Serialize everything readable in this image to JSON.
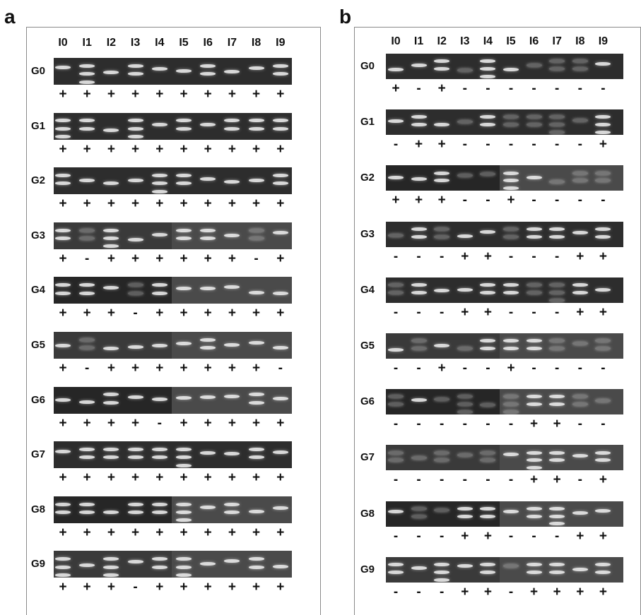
{
  "panels": [
    {
      "letter": "a",
      "lanes": [
        "I0",
        "I1",
        "I2",
        "I3",
        "I4",
        "I5",
        "I6",
        "I7",
        "I8",
        "I9"
      ],
      "rows": [
        {
          "label": "G0",
          "marks": [
            "+",
            "+",
            "+",
            "+",
            "+",
            "+",
            "+",
            "+",
            "+",
            "+"
          ]
        },
        {
          "label": "G1",
          "marks": [
            "+",
            "+",
            "+",
            "+",
            "+",
            "+",
            "+",
            "+",
            "+",
            "+"
          ]
        },
        {
          "label": "G2",
          "marks": [
            "+",
            "+",
            "+",
            "+",
            "+",
            "+",
            "+",
            "+",
            "+",
            "+"
          ]
        },
        {
          "label": "G3",
          "marks": [
            "+",
            "-",
            "+",
            "+",
            "+",
            "+",
            "+",
            "+",
            "-",
            "+"
          ]
        },
        {
          "label": "G4",
          "marks": [
            "+",
            "+",
            "+",
            "-",
            "+",
            "+",
            "+",
            "+",
            "+",
            "+"
          ]
        },
        {
          "label": "G5",
          "marks": [
            "+",
            "-",
            "+",
            "+",
            "+",
            "+",
            "+",
            "+",
            "+",
            "-"
          ]
        },
        {
          "label": "G6",
          "marks": [
            "+",
            "+",
            "+",
            "+",
            "-",
            "+",
            "+",
            "+",
            "+",
            "+"
          ]
        },
        {
          "label": "G7",
          "marks": [
            "+",
            "+",
            "+",
            "+",
            "+",
            "+",
            "+",
            "+",
            "+",
            "+"
          ]
        },
        {
          "label": "G8",
          "marks": [
            "+",
            "+",
            "+",
            "+",
            "+",
            "+",
            "+",
            "+",
            "+",
            "+"
          ]
        },
        {
          "label": "G9",
          "marks": [
            "+",
            "+",
            "+",
            "-",
            "+",
            "+",
            "+",
            "+",
            "+",
            "+"
          ]
        }
      ]
    },
    {
      "letter": "b",
      "lanes": [
        "I0",
        "I1",
        "I2",
        "I3",
        "I4",
        "I5",
        "I6",
        "I7",
        "I8",
        "I9"
      ],
      "rows": [
        {
          "label": "G0",
          "marks": [
            "+",
            "-",
            "+",
            "-",
            "-",
            "-",
            "-",
            "-",
            "-",
            "-"
          ]
        },
        {
          "label": "G1",
          "marks": [
            "-",
            "+",
            "+",
            "-",
            "-",
            "-",
            "-",
            "-",
            "-",
            "+"
          ]
        },
        {
          "label": "G2",
          "marks": [
            "+",
            "+",
            "+",
            "-",
            "-",
            "+",
            "-",
            "-",
            "-",
            "-"
          ]
        },
        {
          "label": "G3",
          "marks": [
            "-",
            "-",
            "-",
            "+",
            "+",
            "-",
            "-",
            "-",
            "+",
            "+"
          ]
        },
        {
          "label": "G4",
          "marks": [
            "-",
            "-",
            "-",
            "+",
            "+",
            "-",
            "-",
            "-",
            "+",
            "+"
          ]
        },
        {
          "label": "G5",
          "marks": [
            "-",
            "-",
            "+",
            "-",
            "-",
            "+",
            "-",
            "-",
            "-",
            "-"
          ]
        },
        {
          "label": "G6",
          "marks": [
            "-",
            "-",
            "-",
            "-",
            "-",
            "-",
            "+",
            "+",
            "-",
            "-"
          ]
        },
        {
          "label": "G7",
          "marks": [
            "-",
            "-",
            "-",
            "-",
            "-",
            "-",
            "+",
            "+",
            "-",
            "+"
          ]
        },
        {
          "label": "G8",
          "marks": [
            "-",
            "-",
            "-",
            "+",
            "+",
            "-",
            "-",
            "-",
            "+",
            "+"
          ]
        },
        {
          "label": "G9",
          "marks": [
            "-",
            "-",
            "-",
            "+",
            "+",
            "-",
            "+",
            "+",
            "+",
            "+"
          ]
        }
      ]
    }
  ]
}
